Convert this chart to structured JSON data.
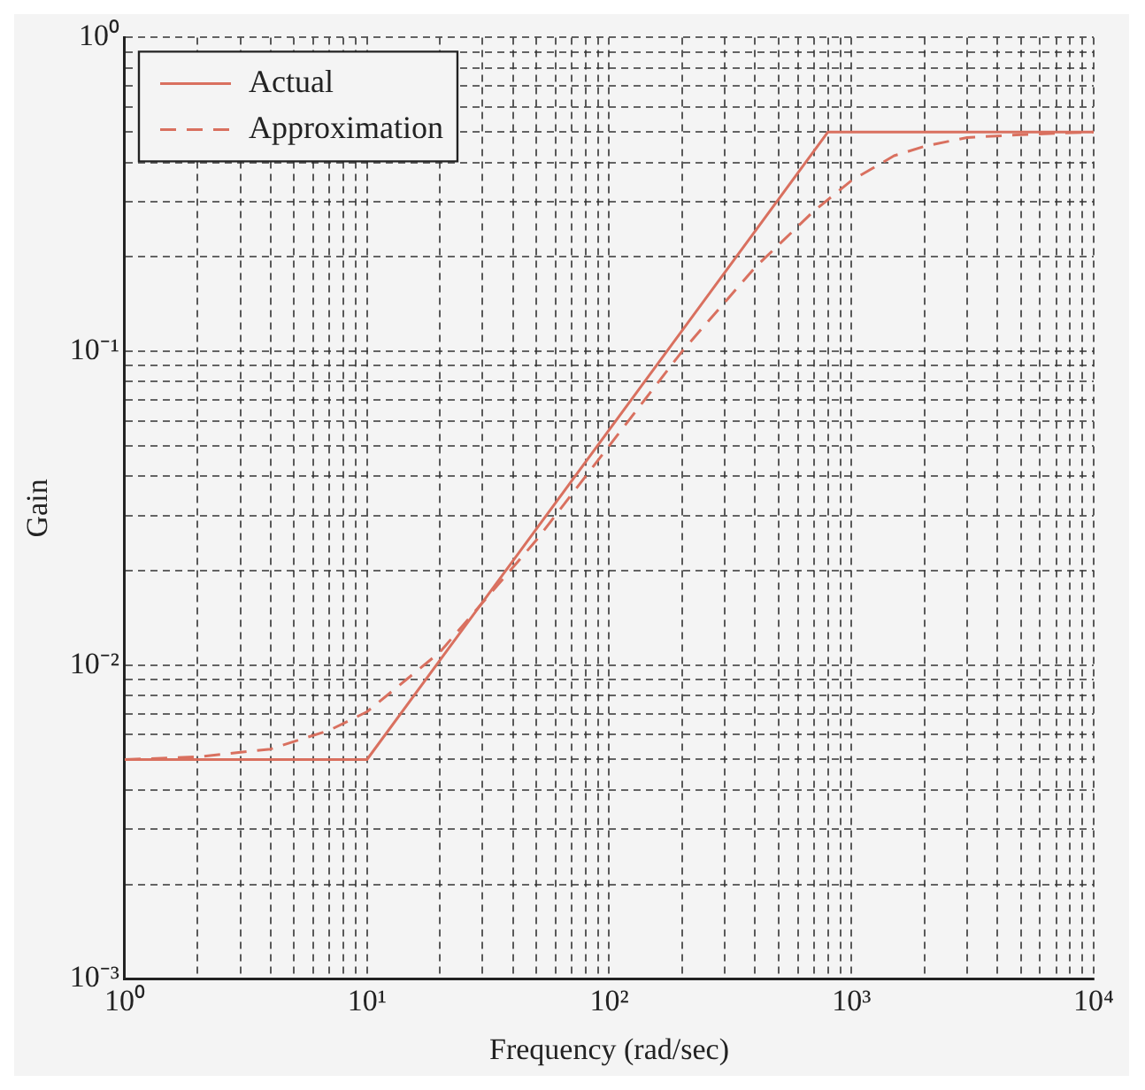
{
  "chart_data": {
    "type": "line",
    "xlabel": "Frequency (rad/sec)",
    "ylabel": "Gain",
    "log": "xy",
    "grid": true,
    "legend": "top left",
    "marker": "none",
    "xlim": [
      1,
      10000
    ],
    "ylim": [
      0.001,
      1
    ],
    "xticks": [
      {
        "value": 1,
        "label": "10⁰"
      },
      {
        "value": 2,
        "label": null
      },
      {
        "value": 3,
        "label": null
      },
      {
        "value": 4,
        "label": null
      },
      {
        "value": 5,
        "label": null
      },
      {
        "value": 6,
        "label": null
      },
      {
        "value": 7,
        "label": null
      },
      {
        "value": 8,
        "label": null
      },
      {
        "value": 9,
        "label": null
      },
      {
        "value": 10,
        "label": "10¹"
      },
      {
        "value": 20,
        "label": null
      },
      {
        "value": 30,
        "label": null
      },
      {
        "value": 40,
        "label": null
      },
      {
        "value": 50,
        "label": null
      },
      {
        "value": 60,
        "label": null
      },
      {
        "value": 70,
        "label": null
      },
      {
        "value": 80,
        "label": null
      },
      {
        "value": 90,
        "label": null
      },
      {
        "value": 100,
        "label": "10²"
      },
      {
        "value": 200,
        "label": null
      },
      {
        "value": 300,
        "label": null
      },
      {
        "value": 400,
        "label": null
      },
      {
        "value": 500,
        "label": null
      },
      {
        "value": 600,
        "label": null
      },
      {
        "value": 700,
        "label": null
      },
      {
        "value": 800,
        "label": null
      },
      {
        "value": 900,
        "label": null
      },
      {
        "value": 1000,
        "label": "10³"
      },
      {
        "value": 2000,
        "label": null
      },
      {
        "value": 3000,
        "label": null
      },
      {
        "value": 4000,
        "label": null
      },
      {
        "value": 5000,
        "label": null
      },
      {
        "value": 6000,
        "label": null
      },
      {
        "value": 7000,
        "label": null
      },
      {
        "value": 8000,
        "label": null
      },
      {
        "value": 9000,
        "label": null
      },
      {
        "value": 10000,
        "label": "10⁴"
      }
    ],
    "yticks": [
      {
        "value": 0.001,
        "label": "10⁻³"
      },
      {
        "value": 0.002,
        "label": null
      },
      {
        "value": 0.003,
        "label": null
      },
      {
        "value": 0.004,
        "label": null
      },
      {
        "value": 0.005,
        "label": null
      },
      {
        "value": 0.006,
        "label": null
      },
      {
        "value": 0.007,
        "label": null
      },
      {
        "value": 0.008,
        "label": null
      },
      {
        "value": 0.009,
        "label": null
      },
      {
        "value": 0.01,
        "label": "10⁻²"
      },
      {
        "value": 0.02,
        "label": null
      },
      {
        "value": 0.03,
        "label": null
      },
      {
        "value": 0.04,
        "label": null
      },
      {
        "value": 0.05,
        "label": null
      },
      {
        "value": 0.06,
        "label": null
      },
      {
        "value": 0.07,
        "label": null
      },
      {
        "value": 0.08,
        "label": null
      },
      {
        "value": 0.09,
        "label": null
      },
      {
        "value": 0.1,
        "label": "10⁻¹"
      },
      {
        "value": 0.2,
        "label": null
      },
      {
        "value": 0.3,
        "label": null
      },
      {
        "value": 0.4,
        "label": null
      },
      {
        "value": 0.5,
        "label": null
      },
      {
        "value": 0.6,
        "label": null
      },
      {
        "value": 0.7,
        "label": null
      },
      {
        "value": 0.8,
        "label": null
      },
      {
        "value": 0.9,
        "label": null
      },
      {
        "value": 1,
        "label": "10⁰"
      }
    ],
    "series": [
      {
        "name": "Actual",
        "color": "#d9705f",
        "line_style": "solid",
        "x": [
          1,
          10,
          800,
          10000
        ],
        "values": [
          0.005,
          0.005,
          0.5,
          0.5
        ]
      },
      {
        "name": "Approximation",
        "color": "#d9705f",
        "line_style": "dashed",
        "x": [
          1,
          2,
          4,
          7,
          10,
          20,
          50,
          100,
          200,
          400,
          700,
          1000,
          1500,
          2000,
          3000,
          5000,
          10000
        ],
        "values": [
          0.005,
          0.0051,
          0.0054,
          0.0062,
          0.0071,
          0.011,
          0.025,
          0.05,
          0.1,
          0.185,
          0.28,
          0.35,
          0.42,
          0.45,
          0.48,
          0.49,
          0.5
        ]
      }
    ]
  }
}
